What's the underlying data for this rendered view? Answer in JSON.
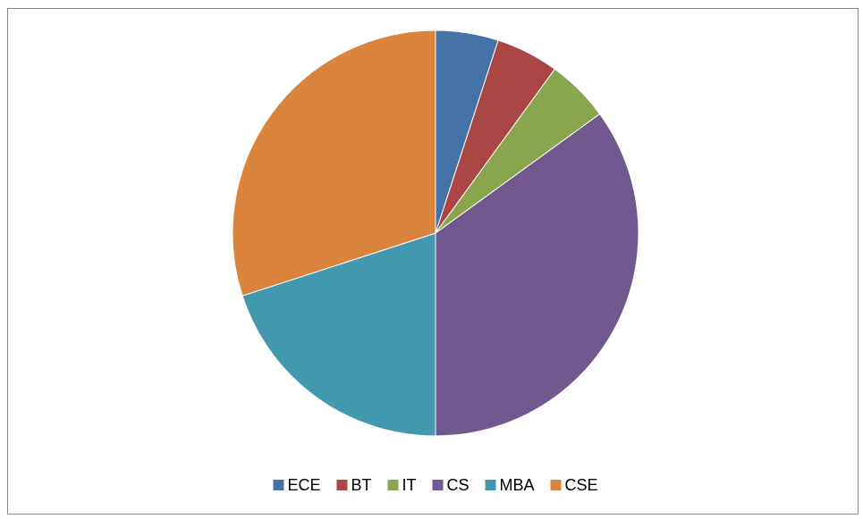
{
  "chart_data": {
    "type": "pie",
    "categories": [
      "ECE",
      "BT",
      "IT",
      "CS",
      "MBA",
      "CSE"
    ],
    "values": [
      5,
      5,
      5,
      35,
      20,
      30
    ],
    "colors": [
      "#4572a7",
      "#aa4643",
      "#89a54e",
      "#71588f",
      "#4198af",
      "#db843d"
    ],
    "start_angle": 0,
    "direction": "clockwise",
    "legend": "bottom"
  }
}
